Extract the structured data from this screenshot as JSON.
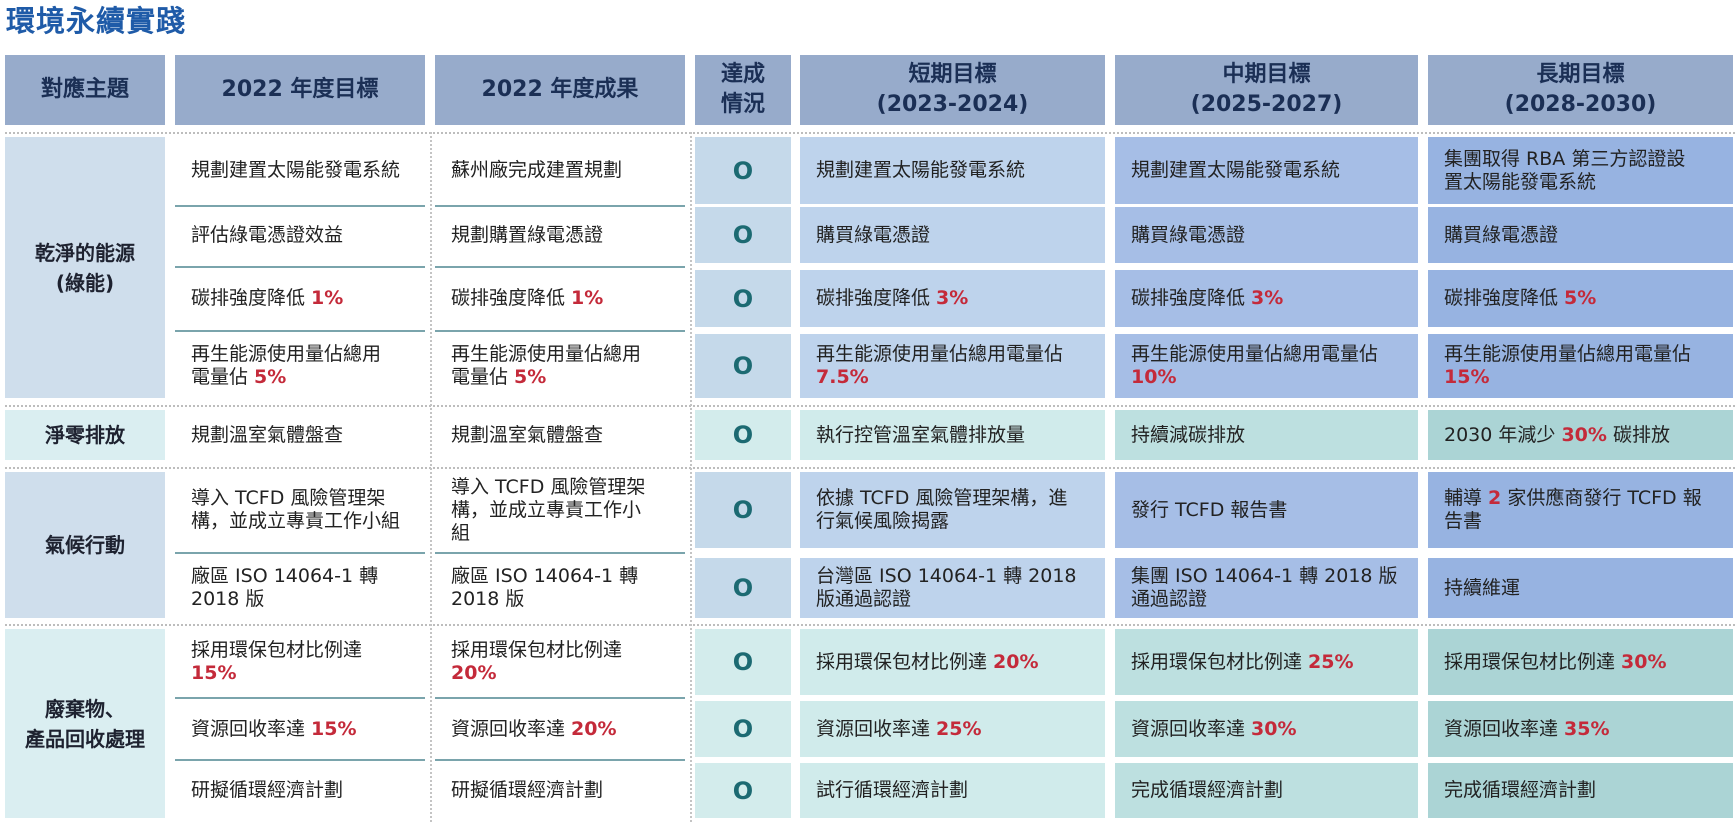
{
  "title": "環境永續實踐",
  "headers": {
    "theme": "對應主題",
    "target2022": "2022 年度目標",
    "result2022": "2022 年度成果",
    "status": [
      "達成",
      "情況"
    ],
    "short": [
      "短期目標",
      "(2023-2024)"
    ],
    "mid": [
      "中期目標",
      "(2025-2027)"
    ],
    "long": [
      "長期目標",
      "(2028-2030)"
    ]
  },
  "groups": [
    {
      "theme": [
        "乾淨的能源",
        "(綠能)"
      ],
      "rows": [
        {
          "target": [
            {
              "t": "規劃建置太陽能發電系統"
            }
          ],
          "result": [
            {
              "t": "蘇州廠完成建置規劃"
            }
          ],
          "status": "O",
          "short": [
            {
              "t": "規劃建置太陽能發電系統"
            }
          ],
          "mid": [
            {
              "t": "規劃建置太陽能發電系統"
            }
          ],
          "long": [
            {
              "t": "集團取得 RBA 第三方認證設",
              "br": true
            },
            {
              "t": "置太陽能發電系統"
            }
          ]
        },
        {
          "target": [
            {
              "t": "評估綠電憑證效益"
            }
          ],
          "result": [
            {
              "t": "規劃購置綠電憑證"
            }
          ],
          "status": "O",
          "short": [
            {
              "t": "購買綠電憑證"
            }
          ],
          "mid": [
            {
              "t": "購買綠電憑證"
            }
          ],
          "long": [
            {
              "t": "購買綠電憑證"
            }
          ]
        },
        {
          "target": [
            {
              "t": "碳排強度降低 "
            },
            {
              "t": "1%",
              "red": true
            }
          ],
          "result": [
            {
              "t": "碳排強度降低 "
            },
            {
              "t": "1%",
              "red": true
            }
          ],
          "status": "O",
          "short": [
            {
              "t": "碳排強度降低 "
            },
            {
              "t": "3%",
              "red": true
            }
          ],
          "mid": [
            {
              "t": "碳排強度降低 "
            },
            {
              "t": "3%",
              "red": true
            }
          ],
          "long": [
            {
              "t": "碳排強度降低 "
            },
            {
              "t": "5%",
              "red": true
            }
          ]
        },
        {
          "target": [
            {
              "t": "再生能源使用量佔總用",
              "br": true
            },
            {
              "t": "電量佔 "
            },
            {
              "t": "5%",
              "red": true
            }
          ],
          "result": [
            {
              "t": "再生能源使用量佔總用",
              "br": true
            },
            {
              "t": "電量佔 "
            },
            {
              "t": "5%",
              "red": true
            }
          ],
          "status": "O",
          "short": [
            {
              "t": "再生能源使用量佔總用電量佔",
              "br": true
            },
            {
              "t": "7.5%",
              "red": true
            }
          ],
          "mid": [
            {
              "t": "再生能源使用量佔總用電量佔",
              "br": true
            },
            {
              "t": "10%",
              "red": true
            }
          ],
          "long": [
            {
              "t": "再生能源使用量佔總用電量佔",
              "br": true
            },
            {
              "t": "15%",
              "red": true
            }
          ]
        }
      ]
    },
    {
      "theme": [
        "淨零排放"
      ],
      "rows": [
        {
          "target": [
            {
              "t": "規劃溫室氣體盤查"
            }
          ],
          "result": [
            {
              "t": "規劃溫室氣體盤查"
            }
          ],
          "status": "O",
          "short": [
            {
              "t": "執行控管溫室氣體排放量"
            }
          ],
          "mid": [
            {
              "t": "持續減碳排放"
            }
          ],
          "long": [
            {
              "t": "2030 年減少 "
            },
            {
              "t": "30%",
              "red": true
            },
            {
              "t": " 碳排放"
            }
          ]
        }
      ]
    },
    {
      "theme": [
        "氣候行動"
      ],
      "rows": [
        {
          "target": [
            {
              "t": "導入 TCFD 風險管理架",
              "br": true
            },
            {
              "t": "構，並成立專責工作小組"
            }
          ],
          "result": [
            {
              "t": "導入 TCFD 風險管理架",
              "br": true
            },
            {
              "t": "構，並成立專責工作小",
              "br": true
            },
            {
              "t": "組"
            }
          ],
          "status": "O",
          "short": [
            {
              "t": "依據 TCFD 風險管理架構，進",
              "br": true
            },
            {
              "t": "行氣候風險揭露"
            }
          ],
          "mid": [
            {
              "t": "發行 TCFD 報告書"
            }
          ],
          "long": [
            {
              "t": "輔導 "
            },
            {
              "t": "2",
              "red": true
            },
            {
              "t": " 家供應商發行 TCFD 報",
              "br": true
            },
            {
              "t": "告書"
            }
          ]
        },
        {
          "target": [
            {
              "t": "廠區 ISO 14064-1 轉",
              "br": true
            },
            {
              "t": "2018 版"
            }
          ],
          "result": [
            {
              "t": "廠區 ISO 14064-1 轉",
              "br": true
            },
            {
              "t": "2018 版"
            }
          ],
          "status": "O",
          "short": [
            {
              "t": "台灣區 ISO 14064-1 轉 2018",
              "br": true
            },
            {
              "t": "版通過認證"
            }
          ],
          "mid": [
            {
              "t": "集團 ISO 14064-1 轉 2018 版",
              "br": true
            },
            {
              "t": "通過認證"
            }
          ],
          "long": [
            {
              "t": "持續維運"
            }
          ]
        }
      ]
    },
    {
      "theme": [
        "廢棄物、",
        "產品回收處理"
      ],
      "rows": [
        {
          "target": [
            {
              "t": "採用環保包材比例達",
              "br": true
            },
            {
              "t": "15%",
              "red": true
            }
          ],
          "result": [
            {
              "t": "採用環保包材比例達",
              "br": true
            },
            {
              "t": "20%",
              "red": true
            }
          ],
          "status": "O",
          "short": [
            {
              "t": "採用環保包材比例達 "
            },
            {
              "t": "20%",
              "red": true
            }
          ],
          "mid": [
            {
              "t": "採用環保包材比例達 "
            },
            {
              "t": "25%",
              "red": true
            }
          ],
          "long": [
            {
              "t": "採用環保包材比例達 "
            },
            {
              "t": "30%",
              "red": true
            }
          ]
        },
        {
          "target": [
            {
              "t": "資源回收率達 "
            },
            {
              "t": "15%",
              "red": true
            }
          ],
          "result": [
            {
              "t": "資源回收率達 "
            },
            {
              "t": "20%",
              "red": true
            }
          ],
          "status": "O",
          "short": [
            {
              "t": "資源回收率達 "
            },
            {
              "t": "25%",
              "red": true
            }
          ],
          "mid": [
            {
              "t": "資源回收率達 "
            },
            {
              "t": "30%",
              "red": true
            }
          ],
          "long": [
            {
              "t": "資源回收率達 "
            },
            {
              "t": "35%",
              "red": true
            }
          ]
        },
        {
          "target": [
            {
              "t": "研擬循環經濟計劃"
            }
          ],
          "result": [
            {
              "t": "研擬循環經濟計劃"
            }
          ],
          "status": "O",
          "short": [
            {
              "t": " 試行循環經濟計劃"
            }
          ],
          "mid": [
            {
              "t": "完成循環經濟計劃"
            }
          ],
          "long": [
            {
              "t": "完成循環經濟計劃"
            }
          ]
        }
      ]
    }
  ]
}
